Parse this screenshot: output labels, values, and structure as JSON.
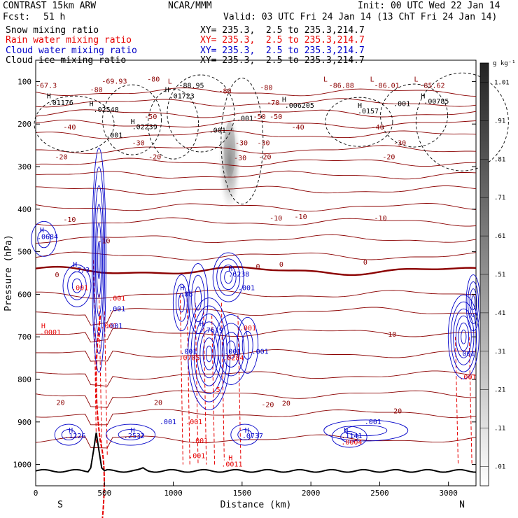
{
  "header": {
    "title": "CONTRAST 15km ARW",
    "center": "NCAR/MMM",
    "init": "Init: 00 UTC Wed 22 Jan 14",
    "fcst_label": "Fcst:",
    "fcst_value": "51 h",
    "valid": "Valid: 03 UTC Fri 24 Jan 14 (13 ChT Fri 24 Jan 14)"
  },
  "fields": [
    {
      "name": "Snow mixing ratio",
      "xy": "XY= 235.3,  2.5 to 235.3,214.7",
      "color": "#000000"
    },
    {
      "name": "Rain water mixing ratio",
      "xy": "XY= 235.3,  2.5 to 235.3,214.7",
      "color": "#e60000"
    },
    {
      "name": "Cloud water mixing ratio",
      "xy": "XY= 235.3,  2.5 to 235.3,214.7",
      "color": "#0000c8"
    },
    {
      "name": "Cloud ice mixing ratio",
      "xy": "XY= 235.3,  2.5 to 235.3,214.7",
      "color": "#000000"
    }
  ],
  "colorbar": {
    "unit": "g kg⁻¹",
    "ticks": [
      ".01",
      ".11",
      ".21",
      ".31",
      ".41",
      ".51",
      ".61",
      ".71",
      ".81",
      ".91",
      "1.01"
    ]
  },
  "chart_data": {
    "type": "cross-section contour",
    "xlabel": "Distance (km)",
    "ylabel": "Pressure (hPa)",
    "xlim": [
      0,
      3200
    ],
    "ylim": [
      1050,
      50
    ],
    "x_ticks": [
      0,
      500,
      1000,
      1500,
      2000,
      2500,
      3000
    ],
    "x_ticks_labels": [
      "0",
      "500",
      "1000",
      "1500",
      "2000",
      "2500",
      "3000"
    ],
    "y_ticks": [
      100,
      200,
      300,
      400,
      500,
      600,
      700,
      800,
      900,
      1000
    ],
    "y_ticks_labels": [
      "100",
      "200",
      "300",
      "400",
      "500",
      "600",
      "700",
      "800",
      "900",
      "1000"
    ],
    "end_labels": [
      "S",
      "N"
    ],
    "temperature_isotherms": [
      {
        "label": "-80",
        "p": 125
      },
      {
        "label": "-70",
        "p": 150
      },
      {
        "label": "-60",
        "p": 175
      },
      {
        "label": "-50",
        "p": 200
      },
      {
        "label": "-40",
        "p": 225
      },
      {
        "label": "-30",
        "p": 260
      },
      {
        "label": "-20",
        "p": 290
      },
      {
        "label": "",
        "p": 320
      },
      {
        "label": "",
        "p": 355
      },
      {
        "label": "",
        "p": 395
      },
      {
        "label": "-10",
        "p": 430
      },
      {
        "label": "",
        "p": 470
      },
      {
        "label": "",
        "p": 510
      },
      {
        "label": "0",
        "p": 545
      },
      {
        "label": "",
        "p": 600
      },
      {
        "label": "",
        "p": 640
      },
      {
        "label": "10",
        "p": 690
      },
      {
        "label": "",
        "p": 740
      },
      {
        "label": "",
        "p": 790
      },
      {
        "label": "",
        "p": 835
      },
      {
        "label": "20",
        "p": 880
      },
      {
        "label": "",
        "p": 940
      }
    ],
    "annotations": [
      {
        "text": "-69.93",
        "x": 480,
        "p": 105,
        "color": "#8b0000"
      },
      {
        "text": "-80",
        "x": 810,
        "p": 100,
        "color": "#8b0000"
      },
      {
        "text": "L",
        "x": 960,
        "p": 105,
        "color": "#8b0000"
      },
      {
        "text": "-88.95",
        "x": 1040,
        "p": 115,
        "color": "#000000"
      },
      {
        "text": "-80",
        "x": 1330,
        "p": 128,
        "color": "#8b0000"
      },
      {
        "text": "-80",
        "x": 1630,
        "p": 120,
        "color": "#8b0000"
      },
      {
        "text": "L",
        "x": 2090,
        "p": 100,
        "color": "#8b0000"
      },
      {
        "text": "-86.88",
        "x": 2130,
        "p": 115,
        "color": "#8b0000"
      },
      {
        "text": "L",
        "x": 2430,
        "p": 100,
        "color": "#8b0000"
      },
      {
        "text": "-86.01",
        "x": 2460,
        "p": 115,
        "color": "#8b0000"
      },
      {
        "text": "L",
        "x": 2750,
        "p": 100,
        "color": "#8b0000"
      },
      {
        "text": "-85.62",
        "x": 2790,
        "p": 115,
        "color": "#8b0000"
      },
      {
        "text": "-67.3",
        "x": 0,
        "p": 115,
        "color": "#8b0000"
      },
      {
        "text": "-80",
        "x": 395,
        "p": 125,
        "color": "#8b0000"
      },
      {
        "text": "H",
        "x": 80,
        "p": 140,
        "color": "#000000"
      },
      {
        "text": ".01176",
        "x": 90,
        "p": 155,
        "color": "#000000"
      },
      {
        "text": "H",
        "x": 940,
        "p": 125,
        "color": "#000000"
      },
      {
        "text": ".01723",
        "x": 970,
        "p": 140,
        "color": "#000000"
      },
      {
        "text": "H",
        "x": 390,
        "p": 158,
        "color": "#000000"
      },
      {
        "text": ".02548",
        "x": 420,
        "p": 172,
        "color": "#000000"
      },
      {
        "text": "H",
        "x": 1790,
        "p": 148,
        "color": "#000000"
      },
      {
        "text": ".006205",
        "x": 1810,
        "p": 162,
        "color": "#000000"
      },
      {
        "text": "-70",
        "x": 1680,
        "p": 155,
        "color": "#8b0000"
      },
      {
        "text": ".001",
        "x": 2600,
        "p": 158,
        "color": "#000000"
      },
      {
        "text": "H",
        "x": 2800,
        "p": 140,
        "color": "#000000"
      },
      {
        "text": ".00785",
        "x": 2820,
        "p": 152,
        "color": "#000000"
      },
      {
        "text": "H",
        "x": 2340,
        "p": 162,
        "color": "#000000"
      },
      {
        "text": ".0157",
        "x": 2340,
        "p": 175,
        "color": "#000000"
      },
      {
        "text": "-50",
        "x": 790,
        "p": 188,
        "color": "#8b0000"
      },
      {
        "text": "-50",
        "x": 1580,
        "p": 188,
        "color": "#8b0000"
      },
      {
        "text": "-50",
        "x": 1700,
        "p": 188,
        "color": "#8b0000"
      },
      {
        "text": ".001",
        "x": 1460,
        "p": 192,
        "color": "#000000"
      },
      {
        "text": "H",
        "x": 690,
        "p": 200,
        "color": "#000000"
      },
      {
        "text": ".02239",
        "x": 700,
        "p": 212,
        "color": "#000000"
      },
      {
        "text": "-40",
        "x": 200,
        "p": 213,
        "color": "#8b0000"
      },
      {
        "text": "-40",
        "x": 1860,
        "p": 213,
        "color": "#8b0000"
      },
      {
        "text": "-40",
        "x": 2440,
        "p": 213,
        "color": "#8b0000"
      },
      {
        "text": ".001",
        "x": 1260,
        "p": 220,
        "color": "#000000"
      },
      {
        "text": ".001",
        "x": 510,
        "p": 232,
        "color": "#000000"
      },
      {
        "text": "-30",
        "x": 700,
        "p": 250,
        "color": "#8b0000"
      },
      {
        "text": "-30",
        "x": 1450,
        "p": 250,
        "color": "#8b0000"
      },
      {
        "text": "-30",
        "x": 1610,
        "p": 250,
        "color": "#8b0000"
      },
      {
        "text": "-30",
        "x": 2600,
        "p": 250,
        "color": "#8b0000"
      },
      {
        "text": "-30",
        "x": 1440,
        "p": 285,
        "color": "#8b0000"
      },
      {
        "text": "-20",
        "x": 140,
        "p": 283,
        "color": "#8b0000"
      },
      {
        "text": "-20",
        "x": 820,
        "p": 283,
        "color": "#8b0000"
      },
      {
        "text": "-20",
        "x": 1620,
        "p": 283,
        "color": "#8b0000"
      },
      {
        "text": "-20",
        "x": 2520,
        "p": 283,
        "color": "#8b0000"
      },
      {
        "text": "-10",
        "x": 1700,
        "p": 427,
        "color": "#8b0000"
      },
      {
        "text": "-10",
        "x": 1880,
        "p": 423,
        "color": "#8b0000"
      },
      {
        "text": "-10",
        "x": 200,
        "p": 430,
        "color": "#8b0000"
      },
      {
        "text": "-10",
        "x": 2460,
        "p": 427,
        "color": "#8b0000"
      },
      {
        "text": "-10",
        "x": 450,
        "p": 480,
        "color": "#8b0000"
      },
      {
        "text": "0",
        "x": 140,
        "p": 560,
        "color": "#8b0000"
      },
      {
        "text": "0",
        "x": 1600,
        "p": 540,
        "color": "#8b0000"
      },
      {
        "text": "0",
        "x": 1770,
        "p": 535,
        "color": "#8b0000"
      },
      {
        "text": "0",
        "x": 2380,
        "p": 530,
        "color": "#8b0000"
      },
      {
        "text": "H",
        "x": 30,
        "p": 455,
        "color": "#0000c8"
      },
      {
        "text": ".0684",
        "x": 10,
        "p": 470,
        "color": "#0000c8"
      },
      {
        "text": "H",
        "x": 270,
        "p": 535,
        "color": "#0000c8"
      },
      {
        "text": ".7/3",
        "x": 270,
        "p": 548,
        "color": "#0000c8"
      },
      {
        "text": ".001",
        "x": 260,
        "p": 590,
        "color": "#e60000"
      },
      {
        "text": "H",
        "x": 1050,
        "p": 590,
        "color": "#0000c8"
      },
      {
        "text": ".88",
        "x": 1050,
        "p": 605,
        "color": "#0000c8"
      },
      {
        "text": "H",
        "x": 1400,
        "p": 545,
        "color": "#0000c8"
      },
      {
        "text": ".6238",
        "x": 1400,
        "p": 558,
        "color": "#0000c8"
      },
      {
        "text": ".001",
        "x": 1470,
        "p": 590,
        "color": "#0000c8"
      },
      {
        "text": ".001",
        "x": 530,
        "p": 615,
        "color": "#e60000"
      },
      {
        "text": ".001",
        "x": 530,
        "p": 640,
        "color": "#0000c8"
      },
      {
        "text": "H",
        "x": 40,
        "p": 680,
        "color": "#e60000"
      },
      {
        "text": ".0001",
        "x": 30,
        "p": 695,
        "color": "#e60000"
      },
      {
        "text": ".001",
        "x": 470,
        "p": 680,
        "color": "#e60000"
      },
      {
        "text": ".001",
        "x": 510,
        "p": 680,
        "color": "#0000c8"
      },
      {
        "text": "H",
        "x": 1190,
        "p": 675,
        "color": "#0000c8"
      },
      {
        "text": ".7619",
        "x": 1210,
        "p": 690,
        "color": "#0000c8"
      },
      {
        "text": ".001",
        "x": 1480,
        "p": 685,
        "color": "#e60000"
      },
      {
        "text": ".001",
        "x": 1050,
        "p": 740,
        "color": "#0000c8"
      },
      {
        "text": ".0705",
        "x": 1040,
        "p": 755,
        "color": "#e60000"
      },
      {
        "text": ".001",
        "x": 1370,
        "p": 740,
        "color": "#0000c8"
      },
      {
        "text": ".0284",
        "x": 1360,
        "p": 755,
        "color": "#e60000"
      },
      {
        "text": ".001",
        "x": 1570,
        "p": 740,
        "color": "#0000c8"
      },
      {
        "text": ".5",
        "x": 1280,
        "p": 830,
        "color": "#e60000"
      },
      {
        "text": ".001",
        "x": 3070,
        "p": 745,
        "color": "#0000c8"
      },
      {
        "text": ".001",
        "x": 3080,
        "p": 800,
        "color": "#e60000"
      },
      {
        "text": "10",
        "x": 2560,
        "p": 700,
        "color": "#8b0000"
      },
      {
        "text": "20",
        "x": 150,
        "p": 860,
        "color": "#8b0000"
      },
      {
        "text": "20",
        "x": 860,
        "p": 860,
        "color": "#8b0000"
      },
      {
        "text": "-20",
        "x": 1640,
        "p": 865,
        "color": "#8b0000"
      },
      {
        "text": "20",
        "x": 1790,
        "p": 862,
        "color": "#8b0000"
      },
      {
        "text": "20",
        "x": 2600,
        "p": 880,
        "color": "#8b0000"
      },
      {
        "text": "H",
        "x": 240,
        "p": 925,
        "color": "#0000c8"
      },
      {
        "text": ".1226",
        "x": 210,
        "p": 938,
        "color": "#0000c8"
      },
      {
        "text": "H",
        "x": 690,
        "p": 925,
        "color": "#0000c8"
      },
      {
        "text": ".2532",
        "x": 640,
        "p": 938,
        "color": "#0000c8"
      },
      {
        "text": ".001",
        "x": 900,
        "p": 905,
        "color": "#0000c8"
      },
      {
        "text": ".001",
        "x": 1090,
        "p": 905,
        "color": "#e60000"
      },
      {
        "text": "H",
        "x": 1520,
        "p": 925,
        "color": "#0000c8"
      },
      {
        "text": ".0737",
        "x": 1500,
        "p": 938,
        "color": "#0000c8"
      },
      {
        "text": ".001",
        "x": 1130,
        "p": 950,
        "color": "#e60000"
      },
      {
        "text": ".001",
        "x": 1110,
        "p": 985,
        "color": "#e60000"
      },
      {
        "text": "H",
        "x": 2240,
        "p": 925,
        "color": "#0000c8"
      },
      {
        "text": ".1141",
        "x": 2220,
        "p": 938,
        "color": "#0000c8"
      },
      {
        "text": ".0004",
        "x": 2220,
        "p": 953,
        "color": "#e60000"
      },
      {
        "text": ".001",
        "x": 2390,
        "p": 905,
        "color": "#0000c8"
      },
      {
        "text": "H",
        "x": 1400,
        "p": 990,
        "color": "#e60000"
      },
      {
        "text": ".0011",
        "x": 1350,
        "p": 1005,
        "color": "#e60000"
      }
    ]
  }
}
